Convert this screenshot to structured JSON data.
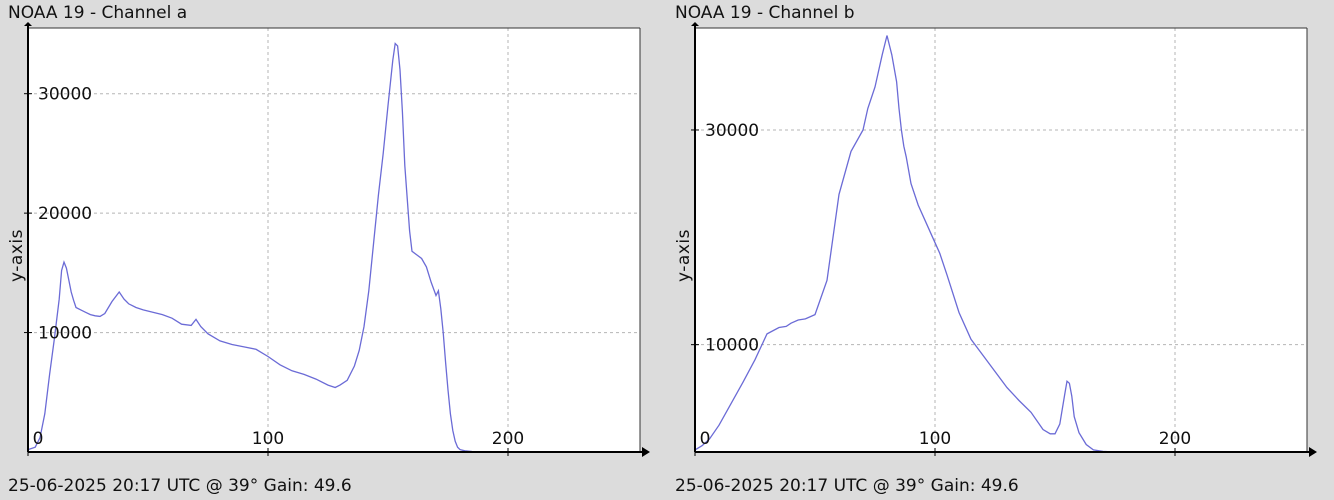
{
  "chart_data": [
    {
      "type": "line",
      "title": "NOAA 19 - Channel a",
      "xlabel": "",
      "ylabel": "y-axis",
      "footer": "25-06-2025 20:17 UTC @ 39° Gain: 49.6",
      "xlim": [
        0,
        255
      ],
      "ylim": [
        0,
        35500
      ],
      "xticks": [
        0,
        100,
        200
      ],
      "yticks": [
        0,
        10000,
        20000,
        30000
      ],
      "grid": true,
      "line_color": "#6b6bd6",
      "series": [
        {
          "x": [
            0,
            3,
            5,
            7,
            9,
            11,
            13,
            14,
            15,
            16,
            17,
            18,
            19,
            20,
            22,
            24,
            26,
            28,
            30,
            32,
            35,
            38,
            40,
            42,
            43,
            45,
            48,
            52,
            56,
            60,
            64,
            68,
            70,
            72,
            75,
            80,
            85,
            90,
            95,
            100,
            105,
            110,
            115,
            120,
            125,
            128,
            130,
            133,
            136,
            138,
            140,
            142,
            144,
            146,
            148,
            150,
            152,
            153,
            154,
            155,
            156,
            157,
            159,
            160,
            162,
            164,
            166,
            168,
            170,
            171,
            172,
            173,
            174,
            175,
            176,
            177,
            178,
            179,
            180,
            182,
            185,
            190,
            193
          ],
          "y": [
            200,
            400,
            1200,
            3200,
            6500,
            9500,
            12800,
            15200,
            15900,
            15400,
            14400,
            13400,
            12700,
            12100,
            11900,
            11700,
            11500,
            11400,
            11350,
            11600,
            12600,
            13400,
            12800,
            12400,
            12300,
            12100,
            11900,
            11700,
            11500,
            11200,
            10700,
            10600,
            11100,
            10500,
            9900,
            9300,
            9000,
            8800,
            8600,
            8000,
            7300,
            6800,
            6500,
            6100,
            5600,
            5400,
            5600,
            6000,
            7200,
            8500,
            10500,
            13500,
            17500,
            21500,
            25000,
            29000,
            32800,
            34200,
            34000,
            32000,
            28500,
            24000,
            18500,
            16800,
            16500,
            16200,
            15500,
            14200,
            13100,
            13500,
            12000,
            10000,
            7500,
            5200,
            3200,
            1800,
            900,
            400,
            200,
            100,
            40,
            10,
            0
          ]
        }
      ]
    },
    {
      "type": "line",
      "title": "NOAA 19 - Channel b",
      "xlabel": "",
      "ylabel": "y-axis",
      "footer": "25-06-2025 20:17 UTC @ 39° Gain: 49.6",
      "xlim": [
        0,
        255
      ],
      "ylim": [
        0,
        39500
      ],
      "xticks": [
        0,
        100,
        200
      ],
      "yticks": [
        0,
        10000,
        30000
      ],
      "grid": true,
      "line_color": "#6b6bd6",
      "series": [
        {
          "x": [
            0,
            3,
            6,
            10,
            15,
            20,
            25,
            30,
            35,
            38,
            40,
            43,
            46,
            50,
            55,
            60,
            65,
            70,
            72,
            75,
            78,
            80,
            82,
            84,
            85,
            86,
            87,
            88,
            90,
            93,
            96,
            99,
            102,
            105,
            110,
            115,
            120,
            125,
            130,
            135,
            140,
            145,
            148,
            150,
            152,
            154,
            155,
            156,
            157,
            158,
            160,
            163,
            166,
            170,
            175
          ],
          "y": [
            200,
            600,
            1200,
            2500,
            4500,
            6500,
            8600,
            11000,
            11600,
            11700,
            12000,
            12300,
            12400,
            12800,
            16000,
            24000,
            28000,
            30000,
            32000,
            34000,
            37000,
            38800,
            37000,
            34500,
            32000,
            30000,
            28500,
            27500,
            25000,
            23000,
            21500,
            20000,
            18500,
            16500,
            13000,
            10500,
            9000,
            7500,
            6000,
            4800,
            3700,
            2100,
            1700,
            1700,
            2600,
            5300,
            6600,
            6400,
            5200,
            3300,
            1800,
            700,
            200,
            60,
            0
          ]
        }
      ]
    }
  ]
}
